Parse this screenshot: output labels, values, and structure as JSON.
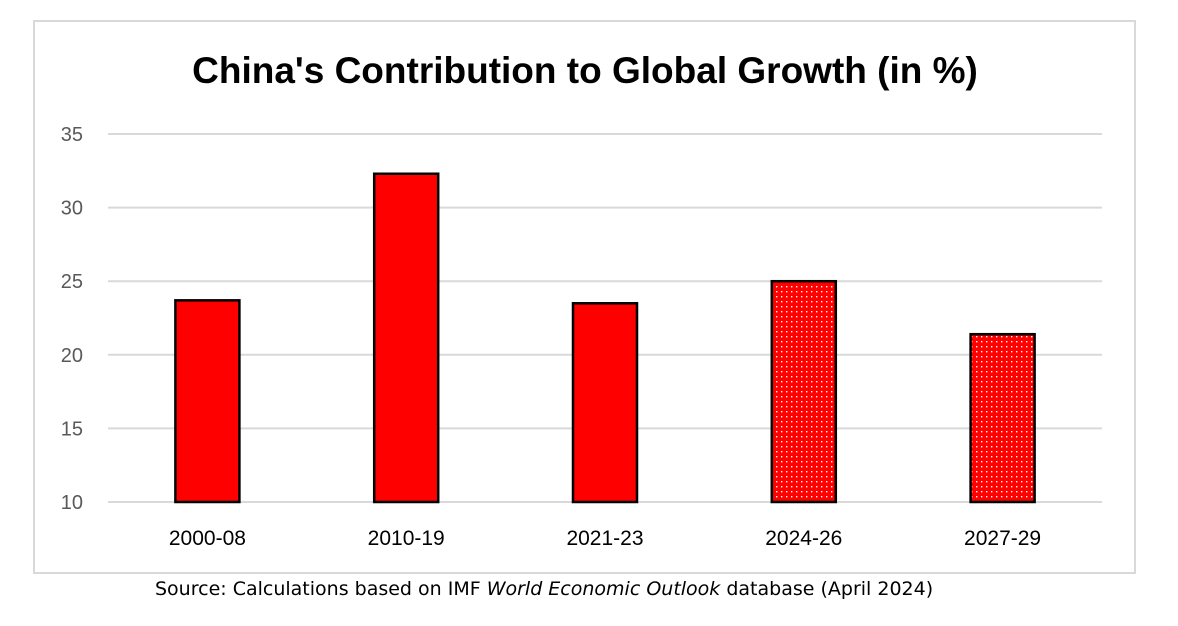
{
  "chart_data": {
    "type": "bar",
    "title": "China's Contribution to Global Growth (in %)",
    "xlabel": "",
    "ylabel": "",
    "categories": [
      "2000-08",
      "2010-19",
      "2021-23",
      "2024-26",
      "2027-29"
    ],
    "values": [
      23.7,
      32.3,
      23.5,
      25.0,
      21.4
    ],
    "bar_style": [
      "solid",
      "solid",
      "solid",
      "dotted",
      "dotted"
    ],
    "ylim": [
      10,
      35
    ],
    "yticks": [
      10,
      15,
      20,
      25,
      30,
      35
    ],
    "grid": true,
    "legend": "none",
    "colors": {
      "bar_fill": "#ff0000",
      "bar_outline": "#000000",
      "dot": "#ffffff",
      "grid": "#d9d9d9",
      "axis_text": "#595959"
    }
  },
  "source": {
    "prefix": "Source: Calculations based on IMF ",
    "italic": "World Economic Outlook",
    "suffix": " database (April 2024)"
  }
}
